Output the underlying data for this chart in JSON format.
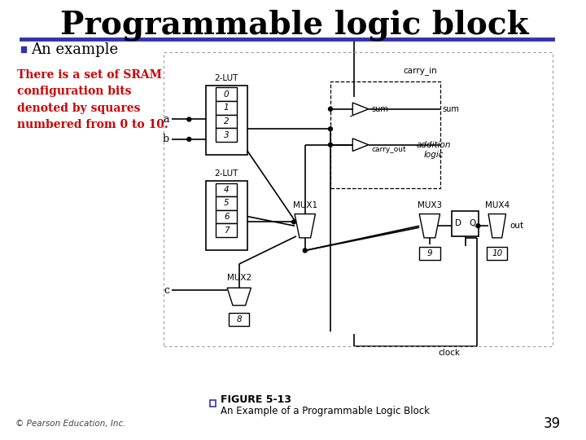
{
  "title": "Programmable logic block",
  "title_fontsize": 28,
  "title_fontweight": "bold",
  "title_color": "#000000",
  "title_font": "serif",
  "bullet_marker_color": "#3333AA",
  "red_text_lines": [
    "There is a set of SRAM",
    "configuration bits",
    "denoted by squares",
    "numbered from 0 to 10."
  ],
  "red_text_color": "#CC0000",
  "figure_caption": "FIGURE 5-13",
  "figure_sub_caption": "An Example of a Programmable Logic Block",
  "copyright_text": "© Pearson Education, Inc.",
  "page_number": "39",
  "bg_color": "#FFFFFF",
  "header_line_color": "#3333AA",
  "diagram_border_color": "#999999"
}
